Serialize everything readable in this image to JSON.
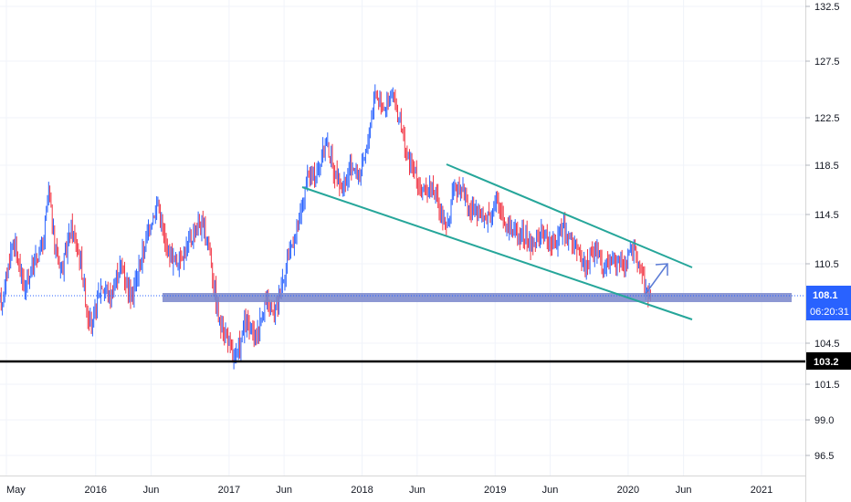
{
  "chart_data": {
    "type": "candlestick",
    "title": "",
    "grid": true,
    "y_axis": {
      "position": "right",
      "ticks": [
        132.5,
        127.5,
        122.5,
        118.5,
        114.5,
        110.5,
        104.5,
        101.5,
        99.0,
        96.5
      ]
    },
    "x_axis": {
      "ticks": [
        "May",
        "2016",
        "Jun",
        "2017",
        "Jun",
        "2018",
        "Jun",
        "2019",
        "Jun",
        "2020",
        "Jun",
        "2021"
      ],
      "tick_dates": [
        "2015-05-01",
        "2016-01-01",
        "2016-06-01",
        "2017-01-01",
        "2017-06-01",
        "2018-01-01",
        "2018-06-01",
        "2019-01-01",
        "2019-06-01",
        "2020-01-01",
        "2020-06-01",
        "2021-01-01"
      ]
    },
    "current_price": "108.1",
    "countdown": "06:20:31",
    "support_level": "103.2",
    "colors": {
      "up": "#2962ff",
      "down": "#f23645",
      "trendline": "#26a69a",
      "zone": "#7986cb",
      "support": "#000000",
      "badge_blue": "#2962ff",
      "badge_black": "#000000"
    },
    "price_path": [
      [
        "2015-04-20",
        107.8
      ],
      [
        "2015-05-20",
        112.5
      ],
      [
        "2015-06-20",
        108.5
      ],
      [
        "2015-07-20",
        111.0
      ],
      [
        "2015-08-10",
        112.0
      ],
      [
        "2015-08-25",
        116.5
      ],
      [
        "2015-09-10",
        112.0
      ],
      [
        "2015-10-01",
        110.0
      ],
      [
        "2015-10-25",
        113.5
      ],
      [
        "2015-11-20",
        111.0
      ],
      [
        "2015-12-10",
        106.5
      ],
      [
        "2015-12-25",
        105.8
      ],
      [
        "2016-01-15",
        109.0
      ],
      [
        "2016-02-10",
        108.0
      ],
      [
        "2016-03-10",
        110.5
      ],
      [
        "2016-04-10",
        108.0
      ],
      [
        "2016-05-10",
        111.5
      ],
      [
        "2016-06-01",
        114.0
      ],
      [
        "2016-06-20",
        115.5
      ],
      [
        "2016-07-10",
        112.0
      ],
      [
        "2016-08-10",
        110.5
      ],
      [
        "2016-09-10",
        112.0
      ],
      [
        "2016-10-10",
        113.8
      ],
      [
        "2016-11-05",
        112.5
      ],
      [
        "2016-11-20",
        109.0
      ],
      [
        "2016-12-05",
        106.0
      ],
      [
        "2016-12-20",
        105.5
      ],
      [
        "2017-01-05",
        104.0
      ],
      [
        "2017-01-20",
        103.3
      ],
      [
        "2017-02-15",
        106.0
      ],
      [
        "2017-03-15",
        105.0
      ],
      [
        "2017-04-10",
        107.5
      ],
      [
        "2017-05-05",
        106.5
      ],
      [
        "2017-05-25",
        109.0
      ],
      [
        "2017-06-15",
        111.5
      ],
      [
        "2017-07-10",
        113.5
      ],
      [
        "2017-08-05",
        117.5
      ],
      [
        "2017-09-01",
        118.0
      ],
      [
        "2017-09-25",
        120.5
      ],
      [
        "2017-10-15",
        118.0
      ],
      [
        "2017-11-10",
        116.5
      ],
      [
        "2017-12-05",
        118.5
      ],
      [
        "2017-12-25",
        117.5
      ],
      [
        "2018-01-15",
        120.0
      ],
      [
        "2018-02-05",
        124.8
      ],
      [
        "2018-03-01",
        123.5
      ],
      [
        "2018-03-25",
        124.5
      ],
      [
        "2018-04-15",
        122.0
      ],
      [
        "2018-05-05",
        119.0
      ],
      [
        "2018-05-25",
        118.0
      ],
      [
        "2018-06-15",
        116.0
      ],
      [
        "2018-07-10",
        117.0
      ],
      [
        "2018-08-01",
        115.0
      ],
      [
        "2018-08-20",
        113.2
      ],
      [
        "2018-09-10",
        116.5
      ],
      [
        "2018-10-01",
        117.0
      ],
      [
        "2018-10-20",
        115.0
      ],
      [
        "2018-11-10",
        114.5
      ],
      [
        "2018-12-05",
        114.2
      ],
      [
        "2019-01-05",
        115.5
      ],
      [
        "2019-02-05",
        113.5
      ],
      [
        "2019-03-10",
        113.0
      ],
      [
        "2019-04-10",
        112.0
      ],
      [
        "2019-05-10",
        113.0
      ],
      [
        "2019-06-10",
        112.0
      ],
      [
        "2019-07-05",
        113.5
      ],
      [
        "2019-08-05",
        112.0
      ],
      [
        "2019-09-05",
        110.5
      ],
      [
        "2019-10-05",
        111.8
      ],
      [
        "2019-10-25",
        110.0
      ],
      [
        "2019-11-20",
        111.0
      ],
      [
        "2019-12-15",
        110.5
      ],
      [
        "2020-01-10",
        111.5
      ],
      [
        "2020-01-25",
        111.0
      ],
      [
        "2020-02-10",
        109.5
      ],
      [
        "2020-02-25",
        108.0
      ],
      [
        "2020-03-05",
        108.1
      ]
    ]
  }
}
